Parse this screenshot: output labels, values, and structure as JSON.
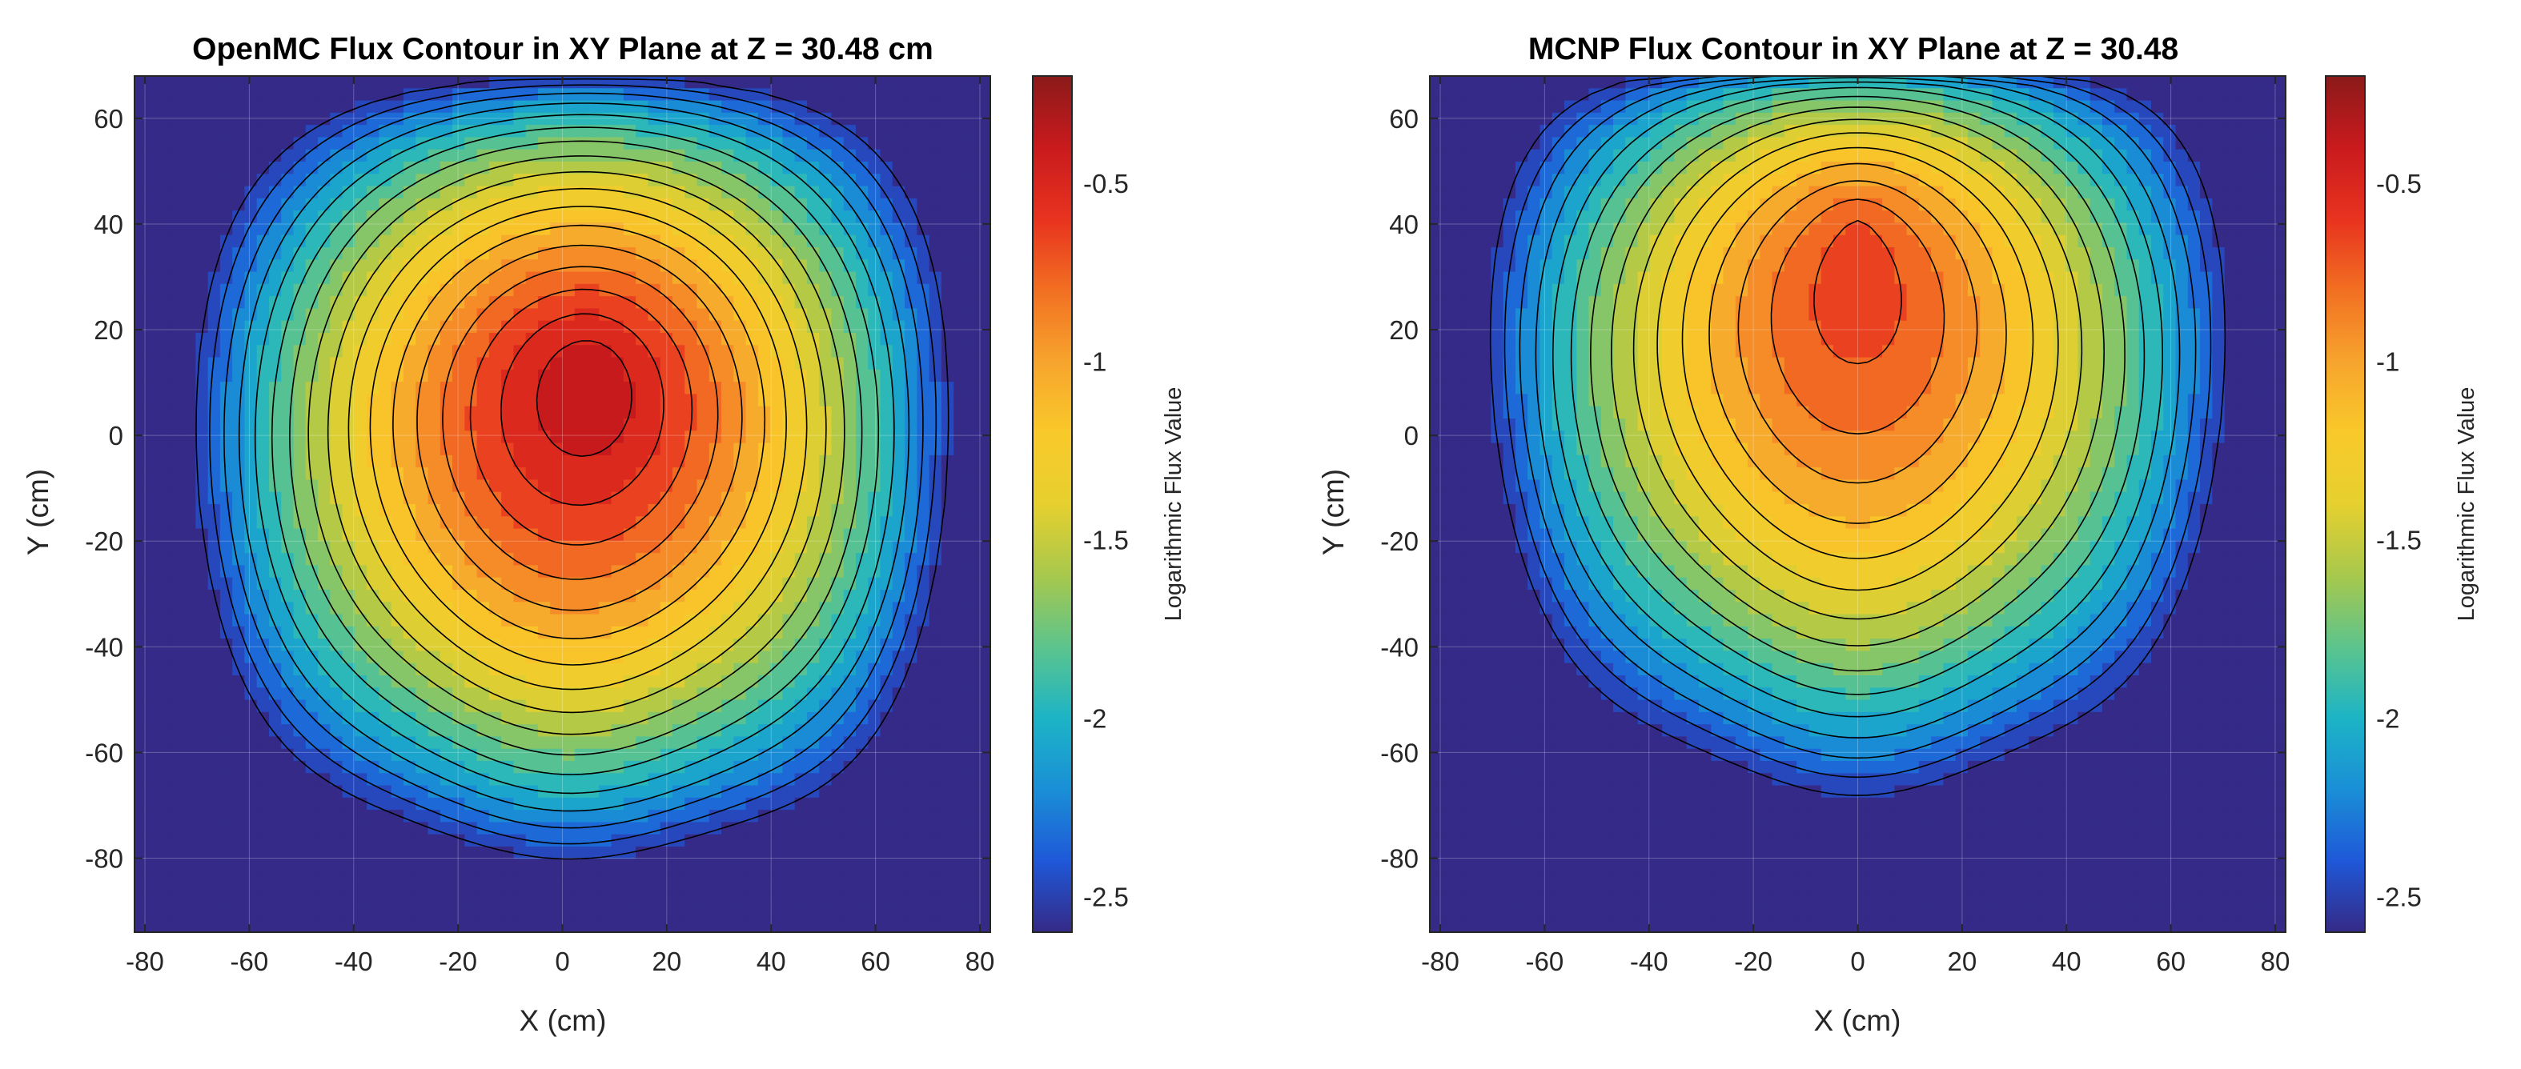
{
  "colors": {
    "colormap": [
      "#352a87",
      "#1f58d8",
      "#1a8fd6",
      "#1cb4c6",
      "#5cc48d",
      "#a8c84c",
      "#e6d02f",
      "#f9c92a",
      "#f7a42d",
      "#f26f22",
      "#e8331f",
      "#c91a1d",
      "#8b1a1a"
    ],
    "contour_line": "#000000",
    "background": "#ffffff"
  },
  "chart_data": [
    {
      "type": "contour",
      "title": "OpenMC Flux Contour in XY Plane at Z = 30.48 cm",
      "xlabel": "X (cm)",
      "ylabel": "Y (cm)",
      "xlim": [
        -82,
        82
      ],
      "ylim": [
        -94,
        68
      ],
      "xticks": [
        -80,
        -60,
        -40,
        -20,
        0,
        20,
        40,
        60,
        80
      ],
      "yticks": [
        60,
        40,
        20,
        0,
        -20,
        -40,
        -60,
        -80
      ],
      "colorbar": {
        "label": "Logarithmic Flux Value",
        "range": [
          -2.6,
          -0.2
        ],
        "ticks": [
          "-0.5",
          "-1",
          "-1.5",
          "-2",
          "-2.5"
        ],
        "tick_values": [
          -0.5,
          -1,
          -1.5,
          -2,
          -2.5
        ]
      },
      "peak": {
        "x": 5,
        "y": 12
      },
      "peak_value": -0.22,
      "contour_step": 0.13
    },
    {
      "type": "contour",
      "title": "MCNP Flux Contour in XY Plane at Z = 30.48",
      "xlabel": "X (cm)",
      "ylabel": "Y (cm)",
      "xlim": [
        -82,
        82
      ],
      "ylim": [
        -94,
        68
      ],
      "xticks": [
        -80,
        -60,
        -40,
        -20,
        0,
        20,
        40,
        60,
        80
      ],
      "yticks": [
        60,
        40,
        20,
        0,
        -20,
        -40,
        -60,
        -80
      ],
      "colorbar": {
        "label": "Logarithmic Flux Value",
        "range": [
          -2.6,
          -0.2
        ],
        "ticks": [
          "-0.5",
          "-1",
          "-1.5",
          "-2",
          "-2.5"
        ],
        "tick_values": [
          -0.5,
          -1,
          -1.5,
          -2,
          -2.5
        ]
      },
      "peak": {
        "x": 0,
        "y": 40
      },
      "peak_value": -0.22,
      "contour_step": 0.13
    }
  ]
}
